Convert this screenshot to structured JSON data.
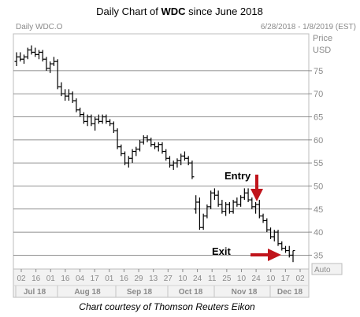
{
  "header": {
    "title_prefix": "Daily Chart of ",
    "title_bold": "WDC",
    "title_suffix": " since June 2018",
    "ticker": "Daily WDC.O",
    "date_range": "6/28/2018 - 1/8/2019 (EST)",
    "price_label": "Price",
    "currency_label": "USD",
    "auto_label": "Auto"
  },
  "footer": {
    "credit": "Chart courtesy of Thomson Reuters Eikon"
  },
  "chart_data": {
    "type": "ohlc",
    "ylim": [
      32,
      83
    ],
    "yticks": [
      35,
      40,
      45,
      50,
      55,
      60,
      65,
      70,
      75
    ],
    "grid": "horizontal",
    "x_tick_labels": [
      "02",
      "16",
      "01",
      "16",
      "04",
      "17",
      "01",
      "16",
      "29",
      "13",
      "27",
      "10",
      "24",
      "11",
      "25",
      "10",
      "24",
      "10",
      "17",
      "02"
    ],
    "month_labels": [
      "Jul 18",
      "Aug 18",
      "Sep 18",
      "Oct 18",
      "Nov 18",
      "Dec 18"
    ],
    "annotations": [
      {
        "label": "Entry",
        "arrow_color": "#c0141b"
      },
      {
        "label": "Exit",
        "arrow_color": "#c0141b"
      }
    ],
    "series": [
      {
        "values": [
          [
            77,
            79,
            76,
            78
          ],
          [
            78,
            79,
            77,
            77.5
          ],
          [
            77.5,
            78.5,
            76.5,
            78
          ],
          [
            78,
            80,
            77.5,
            79.5
          ],
          [
            79.5,
            80.5,
            78.5,
            79
          ],
          [
            79,
            80,
            78,
            78.5
          ],
          [
            78.5,
            79.5,
            77.5,
            79
          ],
          [
            79,
            79.5,
            77,
            77.5
          ],
          [
            77.5,
            78,
            75,
            75.5
          ],
          [
            75.5,
            77,
            74.5,
            76.5
          ],
          [
            76.5,
            78,
            76,
            77
          ],
          [
            77,
            77.5,
            71,
            71.5
          ],
          [
            71.5,
            72.5,
            69.5,
            70
          ],
          [
            70,
            71,
            68.5,
            69.5
          ],
          [
            69.5,
            71,
            68.5,
            70
          ],
          [
            70,
            70.5,
            68,
            68.5
          ],
          [
            68.5,
            69,
            66,
            66.5
          ],
          [
            66.5,
            67,
            65,
            65.5
          ],
          [
            65.5,
            66,
            63.5,
            64
          ],
          [
            64,
            65.5,
            63,
            65
          ],
          [
            65,
            65.5,
            63,
            63.5
          ],
          [
            63.5,
            65,
            62,
            64.5
          ],
          [
            64.5,
            65.5,
            63.5,
            64
          ],
          [
            64,
            65.5,
            63.5,
            65
          ],
          [
            65,
            65.5,
            63.5,
            64
          ],
          [
            64,
            64.5,
            63,
            63.5
          ],
          [
            63.5,
            64,
            61.5,
            62
          ],
          [
            62,
            62.5,
            58,
            58.5
          ],
          [
            58.5,
            59,
            56.5,
            57
          ],
          [
            57,
            57.5,
            54.5,
            55
          ],
          [
            55,
            56.5,
            54,
            56
          ],
          [
            56,
            58,
            55,
            57.5
          ],
          [
            57.5,
            58.5,
            56.5,
            58
          ],
          [
            58,
            60,
            57.5,
            59.5
          ],
          [
            59.5,
            61,
            59,
            60.5
          ],
          [
            60.5,
            61,
            59.5,
            60
          ],
          [
            60,
            60.5,
            58.5,
            59
          ],
          [
            59,
            59.5,
            58,
            58.5
          ],
          [
            58.5,
            59.5,
            57.5,
            59
          ],
          [
            59,
            59.5,
            57,
            57.5
          ],
          [
            57.5,
            58,
            55.5,
            56
          ],
          [
            56,
            56.5,
            54,
            54.5
          ],
          [
            54.5,
            55.5,
            53.5,
            55
          ],
          [
            55,
            56,
            54,
            55.5
          ],
          [
            55.5,
            57,
            54.5,
            56.5
          ],
          [
            56.5,
            57.5,
            55.5,
            56
          ],
          [
            56,
            56.5,
            54.5,
            55
          ],
          [
            55,
            55.5,
            51.5,
            52
          ],
          [
            45,
            48,
            44,
            46.5
          ],
          [
            46.5,
            47.5,
            40.5,
            41
          ],
          [
            41,
            44,
            40.5,
            43.5
          ],
          [
            43.5,
            46,
            43,
            45.5
          ],
          [
            45.5,
            49,
            45,
            48.5
          ],
          [
            48.5,
            49.5,
            47,
            48
          ],
          [
            48,
            49,
            45.5,
            46
          ],
          [
            46,
            47,
            44,
            44.5
          ],
          [
            44.5,
            46.5,
            43.5,
            46
          ],
          [
            46,
            46.5,
            44,
            44.5
          ],
          [
            44.5,
            47,
            44,
            46.5
          ],
          [
            46.5,
            47.5,
            45.5,
            46
          ],
          [
            46,
            48,
            45.5,
            47.5
          ],
          [
            47.5,
            49.5,
            47,
            48.5
          ],
          [
            48.5,
            49.5,
            46.5,
            47
          ],
          [
            47,
            47.5,
            45,
            45.5
          ],
          [
            45.5,
            46.5,
            44,
            46
          ],
          [
            46,
            47,
            43,
            43.5
          ],
          [
            43.5,
            44,
            42,
            42.5
          ],
          [
            42.5,
            43,
            40,
            40.5
          ],
          [
            40.5,
            41,
            38.5,
            39
          ],
          [
            39,
            40.5,
            38,
            40
          ],
          [
            40,
            40.5,
            37,
            37.5
          ],
          [
            37.5,
            38,
            36,
            36.5
          ],
          [
            36.5,
            37,
            35.5,
            36
          ],
          [
            36,
            37,
            34.5,
            35
          ],
          [
            35,
            36,
            33.5,
            36
          ]
        ]
      }
    ]
  }
}
